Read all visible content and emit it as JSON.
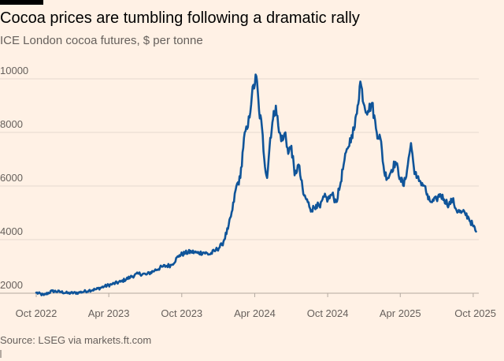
{
  "title": "Cocoa prices are tumbling following a dramatic rally",
  "subtitle": "ICE London cocoa futures, $ per tonne",
  "source": "Source: LSEG via markets.ft.com",
  "colors": {
    "background": "#fff1e5",
    "line": "#0f5499",
    "grid": "#e6d9ce",
    "text": "#66605c"
  },
  "chart_data": {
    "type": "line",
    "title": "Cocoa prices are tumbling following a dramatic rally",
    "subtitle": "ICE London cocoa futures, $ per tonne",
    "xlabel": "",
    "ylabel": "",
    "ylim": [
      2000,
      10000
    ],
    "xlim": [
      "2022-10-01",
      "2025-10-15"
    ],
    "grid": true,
    "y_ticks": [
      2000,
      4000,
      6000,
      8000,
      10000
    ],
    "y_tick_labels": [
      "2000",
      "4000",
      "6000",
      "8000",
      "10000"
    ],
    "x_ticks": [
      "2022-10-01",
      "2023-04-01",
      "2023-10-01",
      "2024-04-01",
      "2024-10-01",
      "2025-04-01",
      "2025-10-01"
    ],
    "x_tick_labels": [
      "Oct 2022",
      "Apr 2023",
      "Oct 2023",
      "Apr 2024",
      "Oct 2024",
      "Apr 2025",
      "Oct 2025"
    ],
    "series": [
      {
        "x": [
          "2022-10-01",
          "2022-10-20",
          "2022-11-10",
          "2022-12-01",
          "2022-12-20",
          "2023-01-15",
          "2023-02-10",
          "2023-03-01",
          "2023-03-20",
          "2023-04-10",
          "2023-05-01",
          "2023-05-25",
          "2023-06-15",
          "2023-07-05",
          "2023-07-25",
          "2023-08-15",
          "2023-09-05",
          "2023-09-25",
          "2023-10-10",
          "2023-10-25",
          "2023-11-10",
          "2023-11-25",
          "2023-12-10",
          "2023-12-25",
          "2024-01-10",
          "2024-01-25",
          "2024-02-05",
          "2024-02-15",
          "2024-02-25",
          "2024-03-05",
          "2024-03-15",
          "2024-03-25",
          "2024-04-05",
          "2024-04-12",
          "2024-04-19",
          "2024-04-25",
          "2024-05-02",
          "2024-05-10",
          "2024-05-17",
          "2024-05-24",
          "2024-06-01",
          "2024-06-10",
          "2024-06-17",
          "2024-06-24",
          "2024-07-02",
          "2024-07-10",
          "2024-07-20",
          "2024-08-01",
          "2024-08-12",
          "2024-08-22",
          "2024-09-02",
          "2024-09-12",
          "2024-09-22",
          "2024-10-02",
          "2024-10-12",
          "2024-10-22",
          "2024-11-01",
          "2024-11-10",
          "2024-11-20",
          "2024-11-30",
          "2024-12-08",
          "2024-12-15",
          "2024-12-22",
          "2025-01-01",
          "2025-01-10",
          "2025-01-20",
          "2025-02-01",
          "2025-02-10",
          "2025-02-20",
          "2025-03-01",
          "2025-03-10",
          "2025-03-20",
          "2025-04-01",
          "2025-04-10",
          "2025-04-20",
          "2025-04-28",
          "2025-05-05",
          "2025-05-12",
          "2025-05-20",
          "2025-06-01",
          "2025-06-10",
          "2025-06-20",
          "2025-07-01",
          "2025-07-10",
          "2025-07-20",
          "2025-08-01",
          "2025-08-10",
          "2025-08-20",
          "2025-09-01",
          "2025-09-10",
          "2025-09-20",
          "2025-10-01",
          "2025-10-08"
        ],
        "values": [
          2020,
          1930,
          2080,
          2050,
          2000,
          2020,
          2100,
          2150,
          2250,
          2340,
          2430,
          2600,
          2730,
          2700,
          2850,
          3000,
          3050,
          3420,
          3500,
          3550,
          3500,
          3520,
          3450,
          3600,
          3800,
          4400,
          5100,
          6000,
          6300,
          7800,
          8200,
          9400,
          10100,
          8800,
          8200,
          7000,
          6300,
          7800,
          8500,
          9000,
          8000,
          7700,
          8000,
          7200,
          7500,
          6400,
          6800,
          5700,
          5400,
          5100,
          5300,
          5200,
          5600,
          5500,
          5700,
          5400,
          6000,
          6800,
          7400,
          7900,
          8200,
          9000,
          9900,
          9000,
          8800,
          9100,
          8000,
          7800,
          6500,
          6300,
          6600,
          6900,
          6300,
          6000,
          6800,
          7600,
          6700,
          6300,
          6200,
          6000,
          5500,
          5400,
          5500,
          5700,
          5500,
          5300,
          5500,
          5100,
          5000,
          5000,
          4800,
          4500,
          4300
        ]
      }
    ]
  }
}
